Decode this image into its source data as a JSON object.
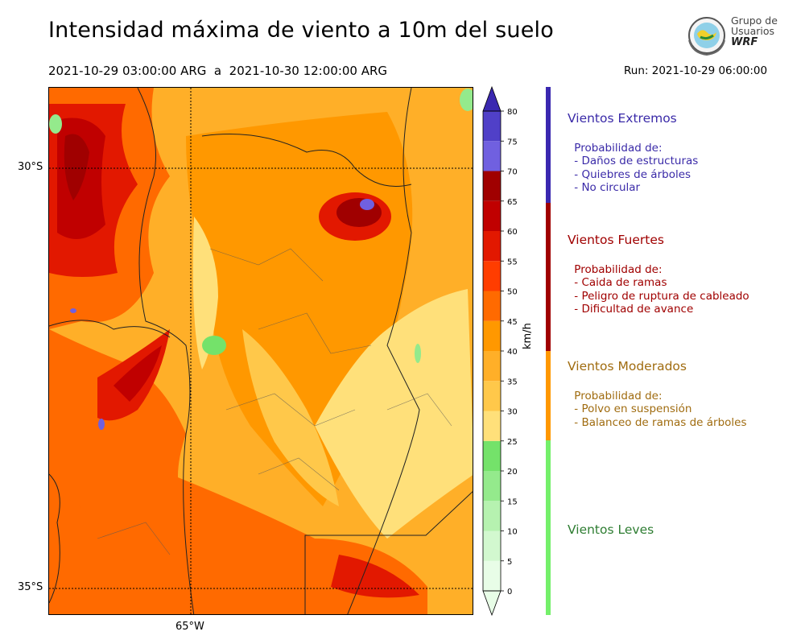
{
  "title": "Intensidad máxima de viento a 10m del suelo",
  "period": "2021-10-29 03:00:00 ARG  a  2021-10-30 12:00:00 ARG",
  "run": "Run: 2021-10-29 06:00:00",
  "logo": {
    "line1": "Grupo de",
    "line2": "Usuarios",
    "line3": "WRF"
  },
  "map": {
    "lat_labels": [
      "30°S",
      "35°S"
    ],
    "lon_labels": [
      "65°W"
    ]
  },
  "colorbar": {
    "unit": "km/h",
    "ticks": [
      "0",
      "5",
      "10",
      "15",
      "20",
      "25",
      "30",
      "35",
      "40",
      "45",
      "50",
      "55",
      "60",
      "65",
      "70",
      "75",
      "80"
    ],
    "colors": [
      "#e8fde7",
      "#d2f8cf",
      "#b6f2b0",
      "#94ea8c",
      "#74e26a",
      "#ffe07a",
      "#ffc84a",
      "#ffaf28",
      "#ff9800",
      "#ff6a00",
      "#ff3d00",
      "#e21800",
      "#c00000",
      "#a00000",
      "#7060e0",
      "#5040c8",
      "#3a28b0"
    ]
  },
  "categories": [
    {
      "title": "Vientos Extremos",
      "color": "#3a2aa8",
      "lines": " Probabilidad de:\n - Daños de estructuras\n - Quiebres de árboles\n - No circular"
    },
    {
      "title": "Vientos Fuertes",
      "color": "#a00000",
      "lines": " Probabilidad de:\n - Caida de ramas\n - Peligro de ruptura de cableado\n - Dificultad de avance"
    },
    {
      "title": "Vientos Moderados",
      "color": "#a06c10",
      "lines": " Probabilidad de:\n - Polvo en suspensión\n - Balanceo de ramas de árboles"
    },
    {
      "title": "Vientos Leves",
      "color": "#2e7d32",
      "lines": ""
    }
  ],
  "category_bar_colors": [
    "#3a28b0",
    "#a00000",
    "#ff9800",
    "#74f06a"
  ]
}
